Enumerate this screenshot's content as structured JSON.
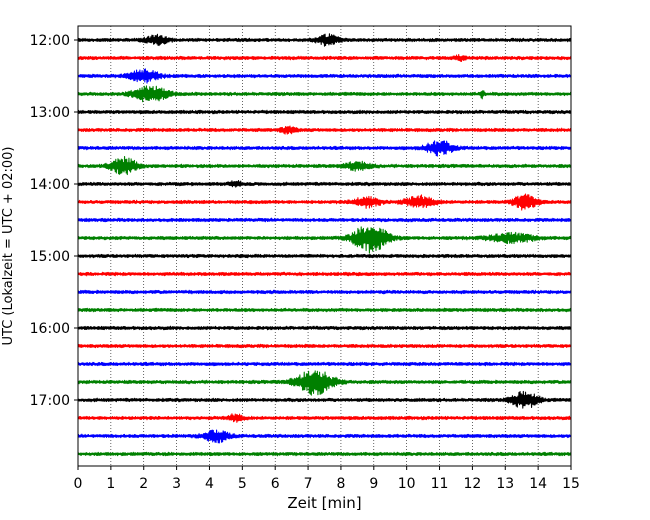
{
  "chart_data": {
    "type": "line",
    "title": "",
    "xlabel": "Zeit  [min]",
    "ylabel": "UTC (Lokalzeit = UTC + 02:00)",
    "xlim": [
      0,
      15
    ],
    "x_ticks": [
      "0",
      "1",
      "2",
      "3",
      "4",
      "5",
      "6",
      "7",
      "8",
      "9",
      "10",
      "11",
      "12",
      "13",
      "14",
      "15"
    ],
    "y_ticks": [
      "12:00",
      "13:00",
      "14:00",
      "15:00",
      "16:00",
      "17:00"
    ],
    "grid": "vertical dotted lines at each minute",
    "trace_interval_min": 15,
    "color_cycle": [
      "#000000",
      "#ff0000",
      "#0000ff",
      "#008000"
    ],
    "traces": [
      {
        "start": "12:00",
        "color": "#000000",
        "events": [
          [
            2.4,
            0.6,
            0.4
          ],
          [
            7.6,
            0.6,
            0.45
          ]
        ]
      },
      {
        "start": "12:15",
        "color": "#ff0000",
        "events": [
          [
            11.6,
            0.3,
            0.2
          ]
        ]
      },
      {
        "start": "12:30",
        "color": "#0000ff",
        "events": [
          [
            2.0,
            0.8,
            0.55
          ]
        ]
      },
      {
        "start": "12:45",
        "color": "#008000",
        "events": [
          [
            2.2,
            0.9,
            0.7
          ],
          [
            12.3,
            0.1,
            0.4
          ]
        ]
      },
      {
        "start": "13:00",
        "color": "#000000",
        "events": []
      },
      {
        "start": "13:15",
        "color": "#ff0000",
        "events": [
          [
            6.4,
            0.4,
            0.3
          ]
        ]
      },
      {
        "start": "13:30",
        "color": "#0000ff",
        "events": [
          [
            11.0,
            0.7,
            0.65
          ]
        ]
      },
      {
        "start": "13:45",
        "color": "#008000",
        "events": [
          [
            1.4,
            0.7,
            0.75
          ],
          [
            8.5,
            0.7,
            0.35
          ]
        ]
      },
      {
        "start": "14:00",
        "color": "#000000",
        "events": [
          [
            4.8,
            0.3,
            0.25
          ]
        ]
      },
      {
        "start": "14:15",
        "color": "#ff0000",
        "events": [
          [
            8.8,
            0.7,
            0.45
          ],
          [
            10.4,
            0.8,
            0.5
          ],
          [
            13.6,
            0.6,
            0.7
          ]
        ]
      },
      {
        "start": "14:30",
        "color": "#0000ff",
        "events": []
      },
      {
        "start": "14:45",
        "color": "#008000",
        "events": [
          [
            8.9,
            0.9,
            1.3
          ],
          [
            13.2,
            1.2,
            0.4
          ]
        ]
      },
      {
        "start": "15:00",
        "color": "#000000",
        "events": []
      },
      {
        "start": "15:15",
        "color": "#ff0000",
        "events": []
      },
      {
        "start": "15:30",
        "color": "#0000ff",
        "events": []
      },
      {
        "start": "15:45",
        "color": "#008000",
        "events": []
      },
      {
        "start": "16:00",
        "color": "#000000",
        "events": []
      },
      {
        "start": "16:15",
        "color": "#ff0000",
        "events": []
      },
      {
        "start": "16:30",
        "color": "#0000ff",
        "events": []
      },
      {
        "start": "16:45",
        "color": "#008000",
        "events": [
          [
            7.2,
            1.0,
            1.1
          ]
        ]
      },
      {
        "start": "17:00",
        "color": "#000000",
        "events": [
          [
            13.6,
            0.7,
            0.75
          ]
        ]
      },
      {
        "start": "17:15",
        "color": "#ff0000",
        "events": [
          [
            4.8,
            0.4,
            0.3
          ]
        ]
      },
      {
        "start": "17:30",
        "color": "#0000ff",
        "events": [
          [
            4.2,
            0.7,
            0.5
          ]
        ]
      },
      {
        "start": "17:45",
        "color": "#008000",
        "events": []
      }
    ]
  }
}
